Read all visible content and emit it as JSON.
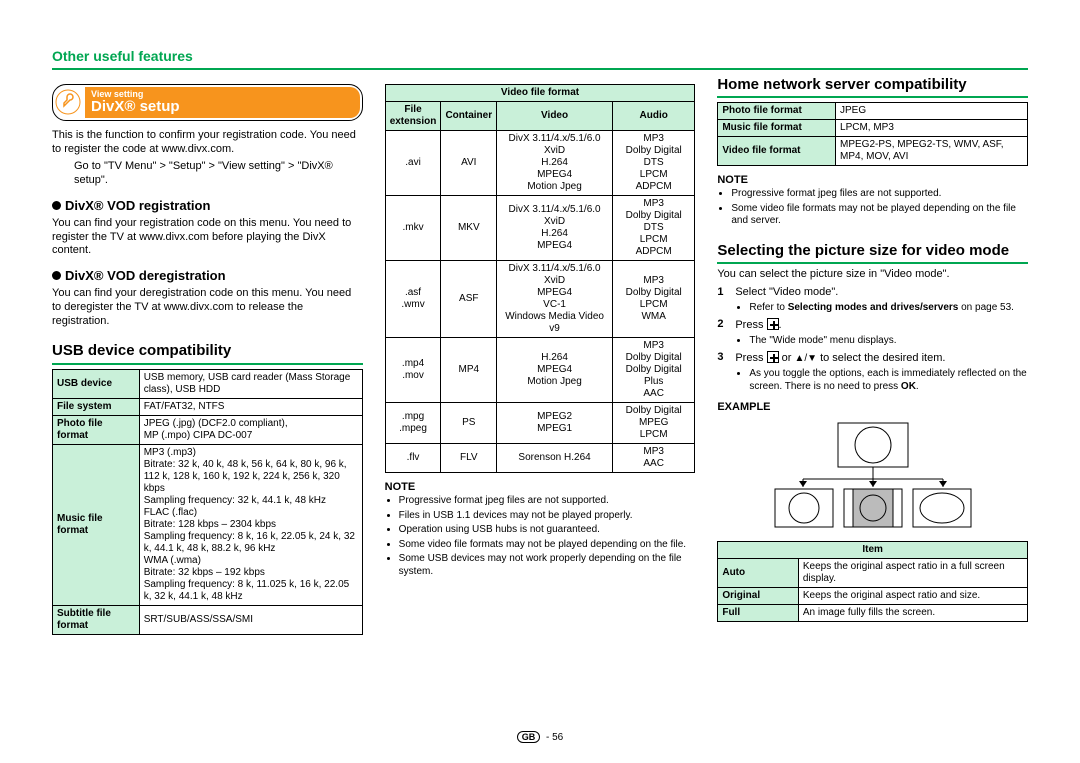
{
  "page": {
    "title": "Other useful features",
    "number": "56",
    "region": "GB"
  },
  "col1": {
    "badge": {
      "cat": "View setting",
      "title": "DivX® setup"
    },
    "intro1": "This is the function to confirm your registration code. You need to register the code at www.divx.com.",
    "intro2": "Go to \"TV Menu\" > \"Setup\" > \"View setting\" > \"DivX® setup\".",
    "vodReg": {
      "h": "DivX® VOD registration",
      "p": "You can find your registration code on this menu. You need to register the TV at www.divx.com before playing the DivX content."
    },
    "vodDereg": {
      "h": "DivX® VOD deregistration",
      "p": "You can find your deregistration code on this menu. You need to deregister the TV at www.divx.com to release the registration."
    },
    "usbH": "USB device compatibility",
    "usbTable": {
      "rows": [
        {
          "k": "USB device",
          "v": "USB memory, USB card reader (Mass Storage class), USB HDD"
        },
        {
          "k": "File system",
          "v": "FAT/FAT32, NTFS"
        },
        {
          "k": "Photo file format",
          "v": "JPEG (.jpg) (DCF2.0 compliant),\nMP (.mpo) CIPA DC-007"
        },
        {
          "k": "Music file format",
          "v": "MP3 (.mp3)\nBitrate: 32 k, 40 k, 48 k, 56 k, 64 k, 80 k, 96 k, 112 k, 128 k, 160 k, 192 k, 224 k, 256 k, 320 kbps\nSampling frequency: 32 k, 44.1 k, 48 kHz\nFLAC (.flac)\nBitrate: 128 kbps – 2304 kbps\nSampling frequency: 8 k, 16 k, 22.05 k, 24 k, 32 k, 44.1 k, 48 k, 88.2 k, 96 kHz\nWMA (.wma)\nBitrate: 32 kbps – 192 kbps\nSampling frequency: 8 k, 11.025 k, 16 k, 22.05 k, 32 k, 44.1 k, 48 kHz"
        },
        {
          "k": "Subtitle file format",
          "v": "SRT/SUB/ASS/SSA/SMI"
        }
      ]
    }
  },
  "col2": {
    "vtable": {
      "h1": "Video file format",
      "cols": [
        "File extension",
        "Container",
        "Video",
        "Audio"
      ],
      "rows": [
        {
          "ext": ".avi",
          "cont": "AVI",
          "vid": "DivX 3.11/4.x/5.1/6.0\nXviD\nH.264\nMPEG4\nMotion Jpeg",
          "aud": "MP3\nDolby Digital\nDTS\nLPCM\nADPCM"
        },
        {
          "ext": ".mkv",
          "cont": "MKV",
          "vid": "DivX 3.11/4.x/5.1/6.0\nXviD\nH.264\nMPEG4",
          "aud": "MP3\nDolby Digital\nDTS\nLPCM\nADPCM"
        },
        {
          "ext": ".asf\n.wmv",
          "cont": "ASF",
          "vid": "DivX 3.11/4.x/5.1/6.0\nXviD\nMPEG4\nVC-1\nWindows Media Video v9",
          "aud": "MP3\nDolby Digital\nLPCM\nWMA"
        },
        {
          "ext": ".mp4\n.mov",
          "cont": "MP4",
          "vid": "H.264\nMPEG4\nMotion Jpeg",
          "aud": "MP3\nDolby Digital\nDolby Digital Plus\nAAC"
        },
        {
          "ext": ".mpg\n.mpeg",
          "cont": "PS",
          "vid": "MPEG2\nMPEG1",
          "aud": "Dolby Digital\nMPEG\nLPCM"
        },
        {
          "ext": ".flv",
          "cont": "FLV",
          "vid": "Sorenson H.264",
          "aud": "MP3\nAAC"
        }
      ]
    },
    "noteH": "NOTE",
    "notes": [
      "Progressive format jpeg files are not supported.",
      "Files in USB 1.1 devices may not be played properly.",
      "Operation using USB hubs is not guaranteed.",
      "Some video file formats may not be played depending on the file.",
      "Some USB devices may not work properly depending on the file system."
    ]
  },
  "col3": {
    "homeH": "Home network server compatibility",
    "homeTable": {
      "rows": [
        {
          "k": "Photo file format",
          "v": "JPEG"
        },
        {
          "k": "Music file format",
          "v": "LPCM, MP3"
        },
        {
          "k": "Video file format",
          "v": "MPEG2-PS, MPEG2-TS, WMV, ASF, MP4, MOV, AVI"
        }
      ]
    },
    "noteH": "NOTE",
    "notes": [
      "Progressive format jpeg files are not supported.",
      "Some video file formats may not be played depending on the file and server."
    ],
    "selH": "Selecting the picture size for video mode",
    "selIntro": "You can select the picture size in \"Video mode\".",
    "steps": {
      "s1": "Select \"Video mode\".",
      "s1b": "Refer to Selecting modes and drives/servers on page 53.",
      "s2a": "Press ",
      "s2b": ".",
      "s2n": "The \"Wide mode\" menu displays.",
      "s3a": "Press ",
      "s3b": " or ",
      "s3c": " to select the desired item.",
      "s3n": "As you toggle the options, each is immediately reflected on the screen. There is no need to press OK."
    },
    "exampleH": "EXAMPLE",
    "itemTable": {
      "hdr": "Item",
      "rows": [
        {
          "k": "Auto",
          "v": "Keeps the original aspect ratio in a full screen display."
        },
        {
          "k": "Original",
          "v": "Keeps the original aspect ratio and size."
        },
        {
          "k": "Full",
          "v": "An image fully fills the screen."
        }
      ]
    }
  }
}
